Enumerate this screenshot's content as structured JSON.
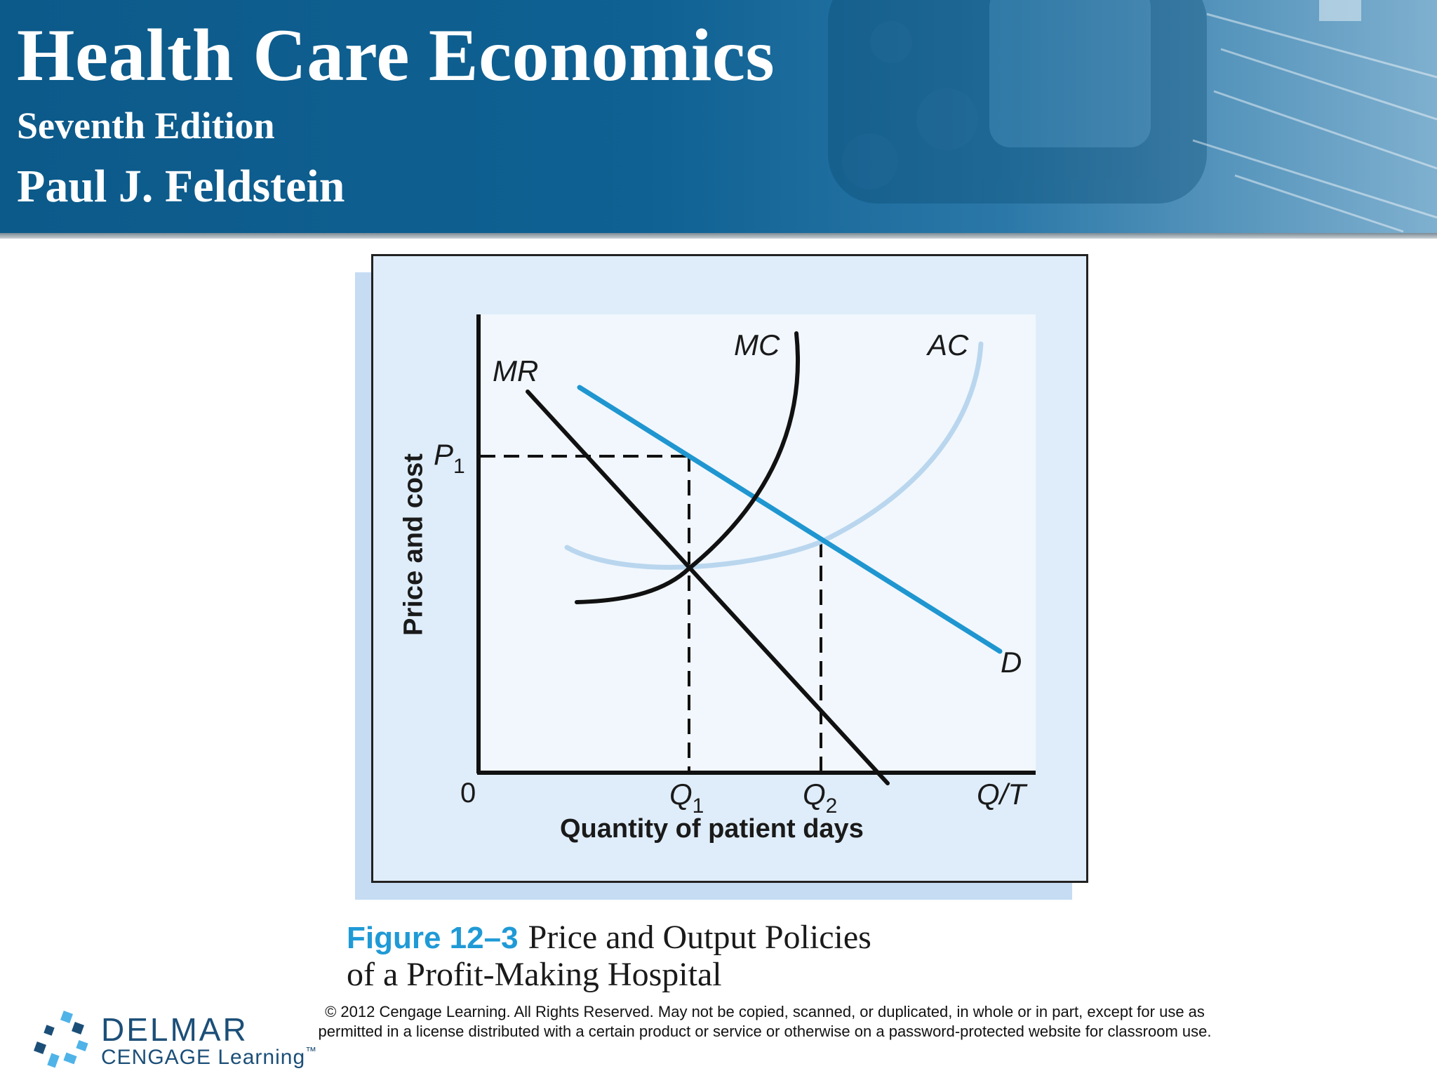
{
  "header": {
    "title": "Health Care Economics",
    "edition": "Seventh Edition",
    "author": "Paul J. Feldstein"
  },
  "figure": {
    "curve_labels": {
      "mr": "MR",
      "mc": "MC",
      "ac": "AC",
      "d": "D"
    },
    "price_label": "P",
    "price_sub": "1",
    "origin": "0",
    "q1": "Q",
    "q1_sub": "1",
    "q2": "Q",
    "q2_sub": "2",
    "x_end": "Q/T",
    "x_title": "Quantity of patient days",
    "y_title": "Price and cost",
    "colors": {
      "demand": "#1f96d0",
      "ac": "#b9d6ee",
      "mc": "#111111",
      "mr": "#111111"
    }
  },
  "caption": {
    "number": "Figure 12–3",
    "text_line1": "Price and Output Policies",
    "text_line2": "of a Profit-Making Hospital"
  },
  "footer": {
    "logo_name": "DELMAR",
    "logo_sub": "CENGAGE Learning",
    "logo_tm": "™",
    "copyright": "© 2012 Cengage Learning. All Rights Reserved. May not be copied, scanned, or duplicated, in whole or in part, except for use as permitted in a license distributed with a certain product or service or otherwise on a password-protected website for classroom use."
  }
}
